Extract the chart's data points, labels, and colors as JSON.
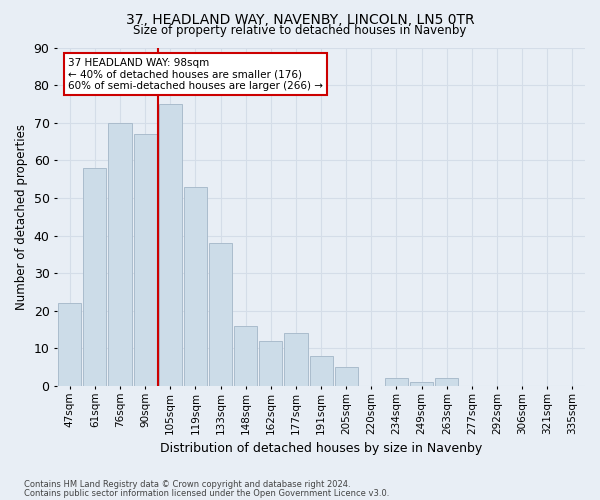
{
  "title1": "37, HEADLAND WAY, NAVENBY, LINCOLN, LN5 0TR",
  "title2": "Size of property relative to detached houses in Navenby",
  "xlabel": "Distribution of detached houses by size in Navenby",
  "ylabel": "Number of detached properties",
  "bar_labels": [
    "47sqm",
    "61sqm",
    "76sqm",
    "90sqm",
    "105sqm",
    "119sqm",
    "133sqm",
    "148sqm",
    "162sqm",
    "177sqm",
    "191sqm",
    "205sqm",
    "220sqm",
    "234sqm",
    "249sqm",
    "263sqm",
    "277sqm",
    "292sqm",
    "306sqm",
    "321sqm",
    "335sqm"
  ],
  "bar_values": [
    22,
    58,
    70,
    67,
    75,
    53,
    38,
    16,
    12,
    14,
    8,
    5,
    0,
    2,
    1,
    2,
    0,
    0,
    0,
    0,
    0
  ],
  "bar_color": "#ccdce8",
  "bar_edgecolor": "#aabccc",
  "vline_color": "#cc0000",
  "annotation_line1": "37 HEADLAND WAY: 98sqm",
  "annotation_line2": "← 40% of detached houses are smaller (176)",
  "annotation_line3": "60% of semi-detached houses are larger (266) →",
  "annotation_box_color": "#ffffff",
  "annotation_box_edgecolor": "#cc0000",
  "ylim": [
    0,
    90
  ],
  "yticks": [
    0,
    10,
    20,
    30,
    40,
    50,
    60,
    70,
    80,
    90
  ],
  "grid_color": "#d4dde8",
  "background_color": "#e8eef5",
  "footer1": "Contains HM Land Registry data © Crown copyright and database right 2024.",
  "footer2": "Contains public sector information licensed under the Open Government Licence v3.0."
}
